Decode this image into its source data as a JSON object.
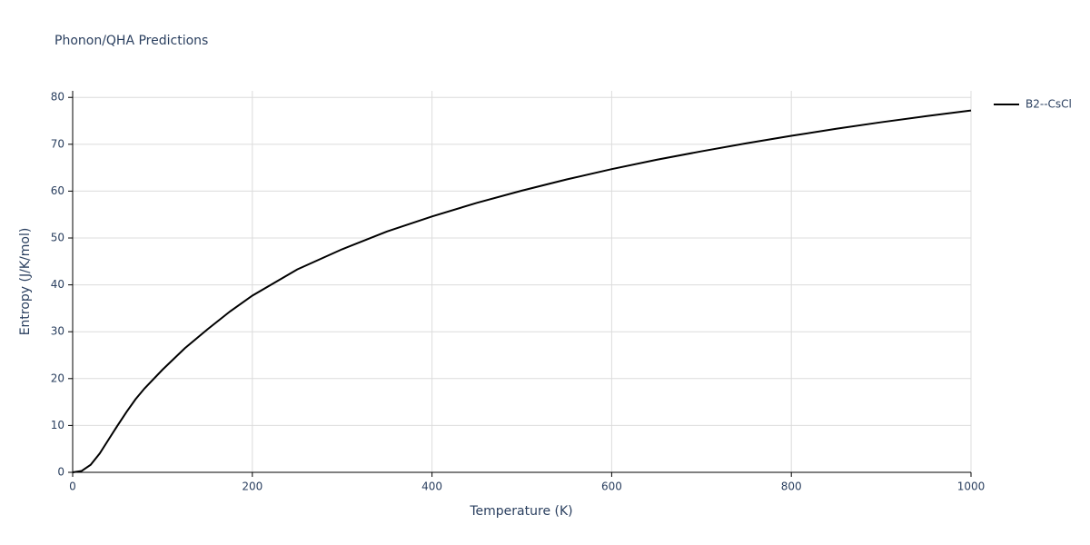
{
  "chart_data": {
    "type": "line",
    "title": "Phonon/QHA Predictions",
    "x_label": "Temperature (K)",
    "y_label": "Entropy (J/K/mol)",
    "x": [
      0,
      10,
      20,
      30,
      40,
      50,
      60,
      70,
      80,
      100,
      125,
      150,
      175,
      200,
      250,
      300,
      350,
      400,
      450,
      500,
      550,
      600,
      650,
      700,
      750,
      800,
      850,
      900,
      950,
      1000
    ],
    "series": [
      {
        "name": "B2--CsCl",
        "color": "#000000",
        "values": [
          0,
          0.3,
          1.6,
          4.0,
          7.0,
          10.0,
          12.9,
          15.6,
          17.9,
          21.9,
          26.5,
          30.5,
          34.3,
          37.7,
          43.3,
          47.6,
          51.4,
          54.6,
          57.5,
          60.1,
          62.5,
          64.7,
          66.7,
          68.5,
          70.2,
          71.8,
          73.3,
          74.7,
          76.0,
          77.2
        ]
      }
    ],
    "xlim": [
      0,
      1000
    ],
    "xticks": [
      0,
      200,
      400,
      600,
      800,
      1000
    ],
    "ylim": [
      0,
      81.4
    ],
    "yticks": [
      0,
      10,
      20,
      30,
      40,
      50,
      60,
      70,
      80
    ],
    "grid": true,
    "legend": "right"
  }
}
